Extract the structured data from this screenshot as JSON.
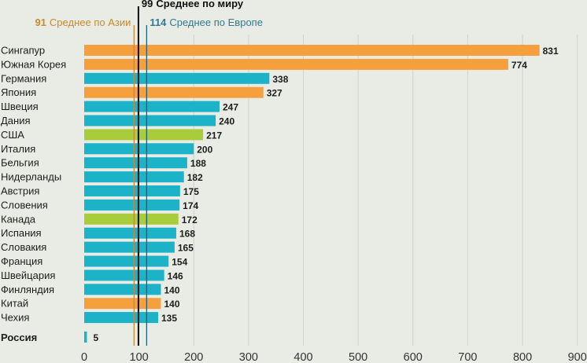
{
  "chart_data": {
    "type": "bar",
    "orientation": "horizontal",
    "title": "",
    "xlabel": "",
    "ylabel": "",
    "xlim": [
      0,
      900
    ],
    "xticks": [
      0,
      100,
      200,
      300,
      400,
      500,
      600,
      700,
      800,
      900
    ],
    "xtick_labels": [
      "0",
      "100",
      "200",
      "300",
      "400",
      "500",
      "600",
      "700",
      "800",
      "900"
    ],
    "grid": true,
    "colors": {
      "asia": "#f5a03c",
      "europe": "#1cb3c8",
      "americas": "#a8cc3a",
      "russia": "#1cb3c8",
      "world_line": "#111111",
      "asia_line": "#c8873a",
      "europe_line": "#1f5f7a",
      "grid": "#cfd3cb",
      "asia_text": "#c88a2e",
      "europe_text": "#2f7a92"
    },
    "bars": [
      {
        "category": "Сингапур",
        "value": 831,
        "group": "asia"
      },
      {
        "category": "Южная Корея",
        "value": 774,
        "group": "asia"
      },
      {
        "category": "Германия",
        "value": 338,
        "group": "europe"
      },
      {
        "category": "Япония",
        "value": 327,
        "group": "asia"
      },
      {
        "category": "Швеция",
        "value": 247,
        "group": "europe"
      },
      {
        "category": "Дания",
        "value": 240,
        "group": "europe"
      },
      {
        "category": "США",
        "value": 217,
        "group": "americas"
      },
      {
        "category": "Италия",
        "value": 200,
        "group": "europe"
      },
      {
        "category": "Бельгия",
        "value": 188,
        "group": "europe"
      },
      {
        "category": "Нидерланды",
        "value": 182,
        "group": "europe"
      },
      {
        "category": "Австрия",
        "value": 175,
        "group": "europe"
      },
      {
        "category": "Словения",
        "value": 174,
        "group": "europe"
      },
      {
        "category": "Канада",
        "value": 172,
        "group": "americas"
      },
      {
        "category": "Испания",
        "value": 168,
        "group": "europe"
      },
      {
        "category": "Словакия",
        "value": 165,
        "group": "europe"
      },
      {
        "category": "Франция",
        "value": 154,
        "group": "europe"
      },
      {
        "category": "Швейцария",
        "value": 146,
        "group": "europe"
      },
      {
        "category": "Финляндия",
        "value": 140,
        "group": "europe"
      },
      {
        "category": "Китай",
        "value": 140,
        "group": "asia"
      },
      {
        "category": "Чехия",
        "value": 135,
        "group": "europe"
      }
    ],
    "highlight_bar": {
      "category": "Россия",
      "value": 5,
      "group": "russia"
    },
    "reference_lines": [
      {
        "name": "asia-average",
        "value": 91,
        "number": "91",
        "label": "Среднее по Азии",
        "color_key": "asia_line",
        "text_key": "asia_text"
      },
      {
        "name": "world-average",
        "value": 99,
        "number": "99",
        "label": "Среднее по миру",
        "color_key": "world_line",
        "text_key": "world_line"
      },
      {
        "name": "europe-average",
        "value": 114,
        "number": "114",
        "label": "Среднее по Европе",
        "color_key": "europe_line",
        "text_key": "europe_text"
      }
    ]
  }
}
